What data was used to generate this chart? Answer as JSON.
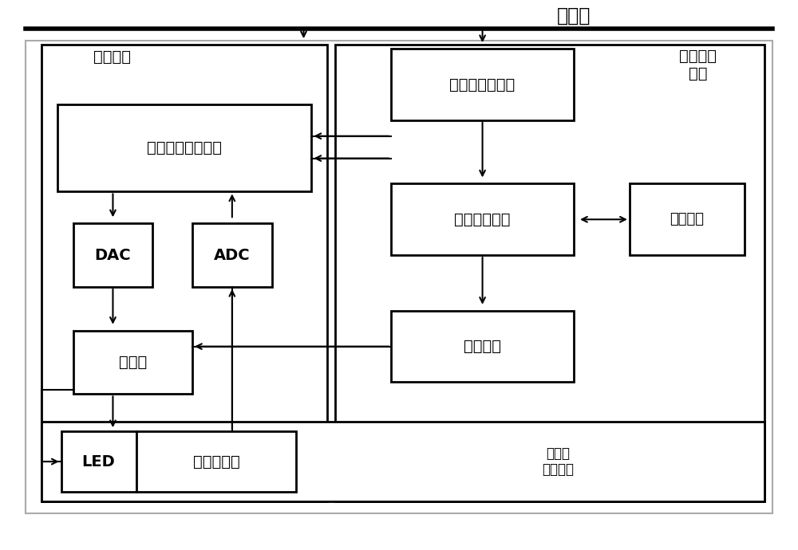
{
  "figsize": [
    10.0,
    6.9
  ],
  "dpi": 100,
  "bg": "#ffffff",
  "powerline_label": "电力线",
  "control_label": "控制电路",
  "emergency_outer_label": "应急电源\n电路",
  "dsp_label": "数字信号处理单元",
  "ac_label": "交流电检测电路",
  "boost_label": "推挽升压电路",
  "empower_label": "应急电源",
  "inverter_label": "逆变电路",
  "dac_label": "DAC",
  "adc_label": "ADC",
  "driver_label": "驱动器",
  "led_label": "LED",
  "sensor_label": "光强探测器",
  "adaptive_label": "自适应\n光强路灯"
}
